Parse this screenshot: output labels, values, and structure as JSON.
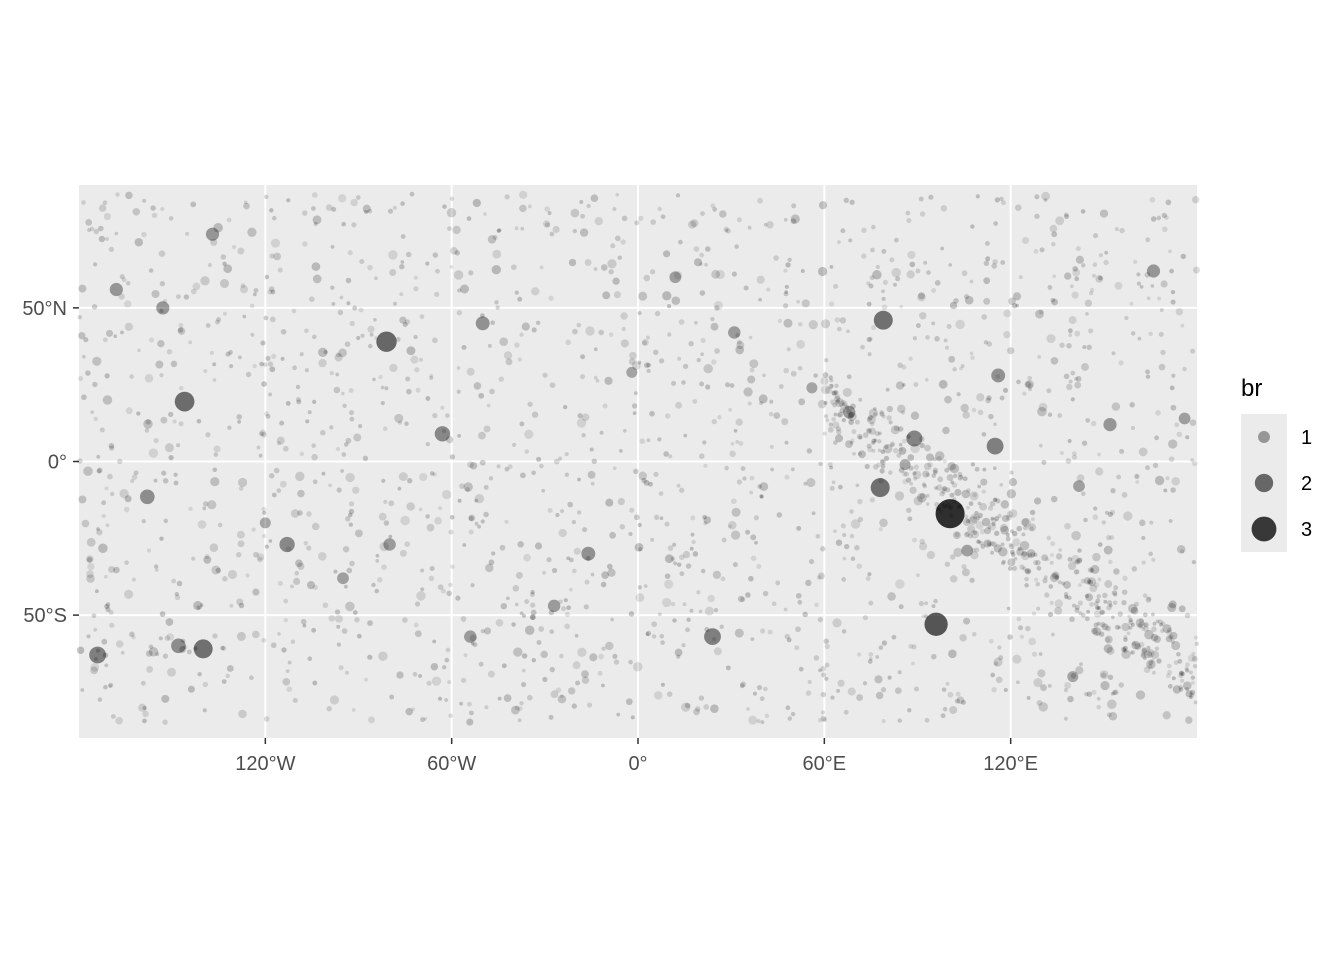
{
  "chart_data": {
    "type": "scatter",
    "title": "",
    "xlabel": "",
    "ylabel": "",
    "xlim": [
      -180,
      180
    ],
    "ylim": [
      -90,
      90
    ],
    "x_ticks": [
      {
        "value": -120,
        "label": "120°W"
      },
      {
        "value": -60,
        "label": "60°W"
      },
      {
        "value": 0,
        "label": "0°"
      },
      {
        "value": 60,
        "label": "60°E"
      },
      {
        "value": 120,
        "label": "120°E"
      }
    ],
    "y_ticks": [
      {
        "value": 50,
        "label": "50°N"
      },
      {
        "value": 0,
        "label": "0°"
      },
      {
        "value": -50,
        "label": "50°S"
      }
    ],
    "grid": true,
    "panel_background": "#ebebeb",
    "point_color": "#000000",
    "background_points_note_count": 2200,
    "legend": {
      "title": "br",
      "placement": "right",
      "items": [
        {
          "label": "1",
          "value": 1
        },
        {
          "label": "2",
          "value": 2
        },
        {
          "label": "3",
          "value": 3
        }
      ]
    },
    "highlighted_points": [
      {
        "lon": 100.5,
        "lat": -17,
        "br": 3.2
      },
      {
        "lon": 96,
        "lat": -53,
        "br": 2.4
      },
      {
        "lon": -81,
        "lat": 39,
        "br": 2.0
      },
      {
        "lon": -146,
        "lat": 19.5,
        "br": 1.9
      },
      {
        "lon": 79,
        "lat": 46,
        "br": 1.8
      },
      {
        "lon": 78,
        "lat": -8.5,
        "br": 1.8
      },
      {
        "lon": -140,
        "lat": -61,
        "br": 1.8
      },
      {
        "lon": -174,
        "lat": -63,
        "br": 1.5
      },
      {
        "lon": 24,
        "lat": -57,
        "br": 1.5
      },
      {
        "lon": 115,
        "lat": 5,
        "br": 1.5
      },
      {
        "lon": 89,
        "lat": 7.5,
        "br": 1.4
      },
      {
        "lon": -63,
        "lat": 9,
        "br": 1.3
      },
      {
        "lon": -113,
        "lat": -27,
        "br": 1.3
      },
      {
        "lon": -158,
        "lat": -11.5,
        "br": 1.2
      },
      {
        "lon": -148,
        "lat": -60,
        "br": 1.2
      },
      {
        "lon": -16,
        "lat": -30,
        "br": 1.1
      },
      {
        "lon": -50,
        "lat": 45,
        "br": 1.1
      },
      {
        "lon": 116,
        "lat": 28,
        "br": 1.1
      },
      {
        "lon": 166,
        "lat": 62,
        "br": 1.0
      },
      {
        "lon": 152,
        "lat": 12,
        "br": 1.0
      },
      {
        "lon": -137,
        "lat": 74,
        "br": 1.0
      },
      {
        "lon": -168,
        "lat": 56,
        "br": 1.0
      },
      {
        "lon": -153,
        "lat": 50,
        "br": 1.0
      },
      {
        "lon": 31,
        "lat": 42,
        "br": 0.9
      },
      {
        "lon": -54,
        "lat": -57,
        "br": 0.9
      },
      {
        "lon": -27,
        "lat": -47,
        "br": 0.9
      },
      {
        "lon": 68,
        "lat": 16,
        "br": 0.9
      },
      {
        "lon": -80,
        "lat": -27,
        "br": 0.9
      },
      {
        "lon": 142,
        "lat": -8,
        "br": 0.8
      },
      {
        "lon": 176,
        "lat": 14,
        "br": 0.8
      },
      {
        "lon": 12,
        "lat": 60,
        "br": 0.8
      },
      {
        "lon": -2,
        "lat": 29,
        "br": 0.7
      },
      {
        "lon": 56,
        "lat": 24,
        "br": 0.7
      },
      {
        "lon": 86,
        "lat": -1,
        "br": 0.7
      },
      {
        "lon": 106,
        "lat": -29,
        "br": 0.8
      },
      {
        "lon": 140,
        "lat": -70,
        "br": 0.7
      },
      {
        "lon": -120,
        "lat": -20,
        "br": 0.7
      },
      {
        "lon": -95,
        "lat": -38,
        "br": 0.8
      }
    ]
  }
}
